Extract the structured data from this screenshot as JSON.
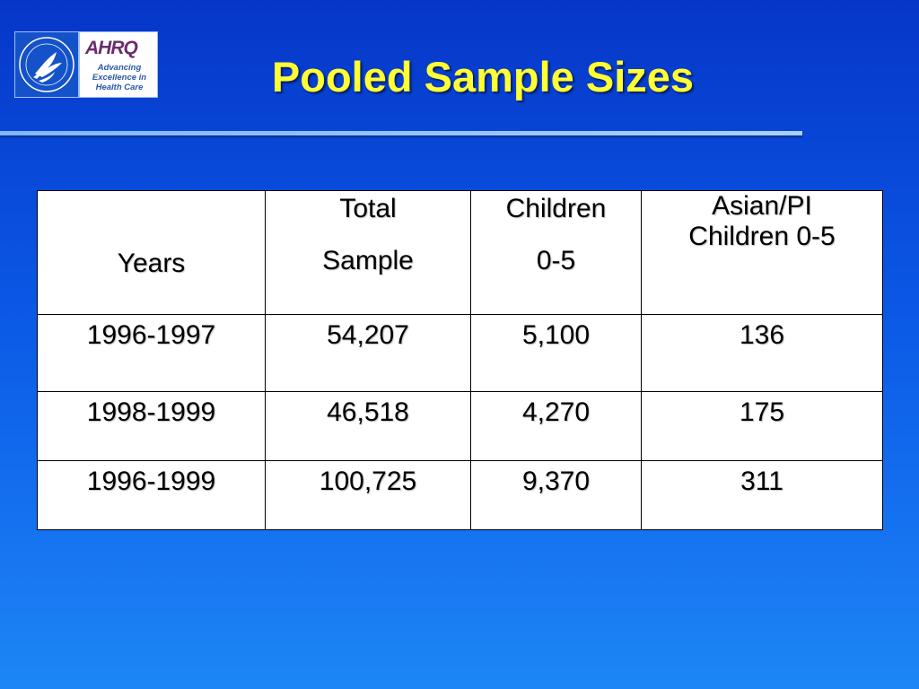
{
  "header": {
    "title": "Pooled Sample Sizes",
    "logos": {
      "ahrq_word": "AHRQ",
      "ahrq_tagline": "Advancing\nExcellence in\nHealth Care",
      "hhs_icon": "hhs-eagle-seal-icon"
    }
  },
  "table": {
    "headers": {
      "years": {
        "line1": "",
        "line2": "Years"
      },
      "total_sample": {
        "line1": "Total",
        "line2": "Sample"
      },
      "children": {
        "line1": "Children",
        "line2": "0-5"
      },
      "asian_pi": {
        "line1": "Asian/PI",
        "line2": "Children 0-5"
      }
    },
    "rows": [
      {
        "years": "1996-1997",
        "total_sample": "54,207",
        "children": "5,100",
        "asian_pi": "136"
      },
      {
        "years": "1998-1999",
        "total_sample": "46,518",
        "children": "4,270",
        "asian_pi": "175"
      },
      {
        "years": "1996-1999",
        "total_sample": "100,725",
        "children": "9,370",
        "asian_pi": "311"
      }
    ]
  },
  "colors": {
    "background_top": "#0636c8",
    "background_bottom": "#1d86f6",
    "title": "#ffff33",
    "rule": "#a9d0ff"
  }
}
